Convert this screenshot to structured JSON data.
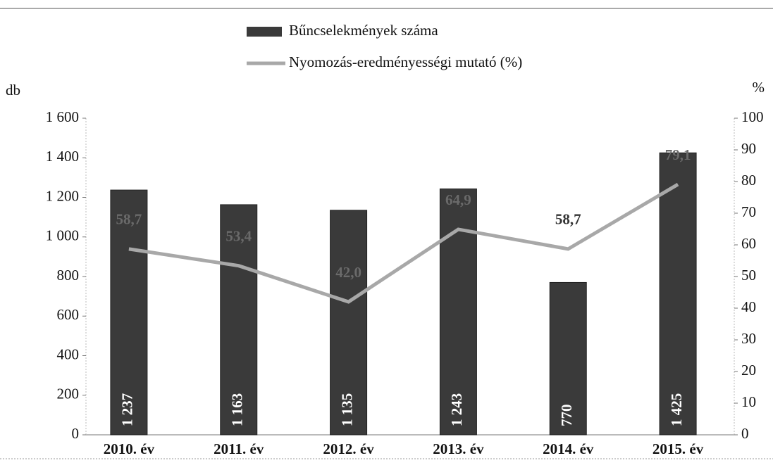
{
  "chart_data": {
    "type": "bar_line",
    "categories": [
      "2010. év",
      "2011. év",
      "2012. év",
      "2013. év",
      "2014. év",
      "2015. év"
    ],
    "series": [
      {
        "name": "Bűncselekmények száma",
        "color": "#3a3a3a",
        "type": "bar",
        "values": [
          1237,
          1163,
          1135,
          1243,
          770,
          1425
        ],
        "value_labels": [
          "1 237",
          "1 163",
          "1 135",
          "1 243",
          "770",
          "1 425"
        ]
      },
      {
        "name": "Nyomozás-eredményességi mutató (%)",
        "color": "#a8a8a8",
        "type": "line",
        "axis": "y2",
        "values": [
          58.7,
          53.4,
          42.0,
          64.9,
          58.7,
          79.1
        ],
        "value_labels": [
          "58,7",
          "53,4",
          "42,0",
          "64,9",
          "58,7",
          "79,1"
        ]
      }
    ],
    "ylabel": "db",
    "y2label": "%",
    "ylim": [
      0,
      1600
    ],
    "yticks": [
      0,
      200,
      400,
      600,
      800,
      {
        "value": 1000,
        "label": "1 000"
      },
      {
        "value": 1200,
        "label": "1 200"
      },
      {
        "value": 1400,
        "label": "1 400"
      },
      {
        "value": 1600,
        "label": "1 600"
      }
    ],
    "y2lim": [
      0,
      100
    ],
    "y2ticks": [
      0,
      10,
      20,
      30,
      40,
      50,
      60,
      70,
      80,
      90,
      100
    ],
    "legend": "top"
  }
}
